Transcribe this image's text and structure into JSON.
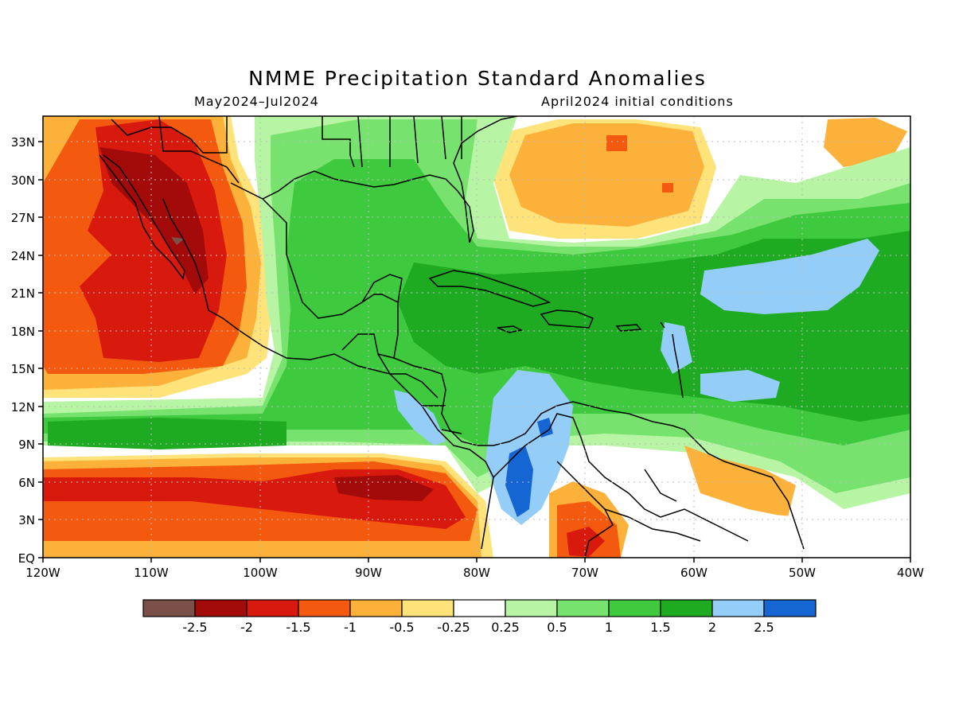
{
  "map": {
    "title": "NMME Precipitation Standard Anomalies",
    "period": "May2024–Jul2024",
    "initial_conditions": "April2024 initial conditions",
    "lat_labels": [
      "33N",
      "30N",
      "27N",
      "24N",
      "21N",
      "18N",
      "15N",
      "12N",
      "9N",
      "6N",
      "3N",
      "EQ"
    ],
    "lon_labels": [
      "120W",
      "110W",
      "100W",
      "90W",
      "80W",
      "70W",
      "60W",
      "50W",
      "40W"
    ]
  },
  "legend": {
    "colors": [
      "#7b5048",
      "#a30b0b",
      "#d81a0e",
      "#f35a10",
      "#fbb13a",
      "#fee37a",
      "#ffffff",
      "#b7f5a5",
      "#78e26e",
      "#3ec93e",
      "#1eaa21",
      "#94cdf7",
      "#1565d2"
    ],
    "labels": [
      "-2.5",
      "-2",
      "-1.5",
      "-1",
      "-0.5",
      "-0.25",
      "0.25",
      "0.5",
      "1",
      "1.5",
      "2",
      "2.5"
    ]
  }
}
